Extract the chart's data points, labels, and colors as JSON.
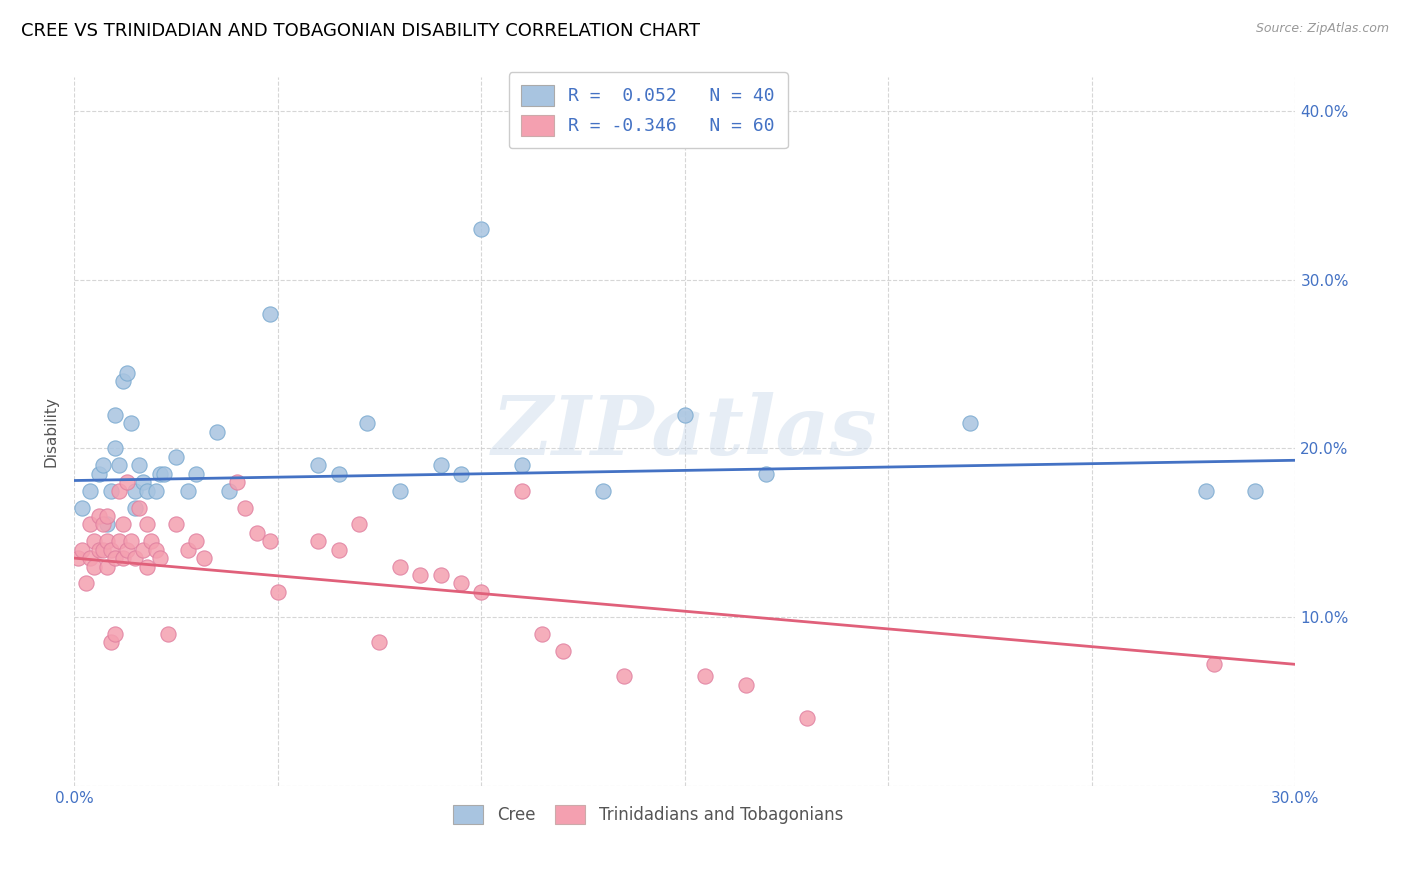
{
  "title": "CREE VS TRINIDADIAN AND TOBAGONIAN DISABILITY CORRELATION CHART",
  "source": "Source: ZipAtlas.com",
  "ylabel": "Disability",
  "xlim": [
    0.0,
    0.3
  ],
  "ylim": [
    0.0,
    0.42
  ],
  "watermark": "ZIPatlas",
  "legend_r1": "R =  0.052   N = 40",
  "legend_r2": "R = -0.346   N = 60",
  "cree_color": "#a8c4e0",
  "trini_color": "#f4a0b0",
  "cree_line_color": "#4472c4",
  "trini_line_color": "#e0607a",
  "legend_label1": "Cree",
  "legend_label2": "Trinidadians and Tobagonians",
  "cree_line": [
    [
      0.0,
      0.181
    ],
    [
      0.3,
      0.193
    ]
  ],
  "trini_line": [
    [
      0.0,
      0.135
    ],
    [
      0.3,
      0.072
    ]
  ],
  "cree_points": [
    [
      0.002,
      0.165
    ],
    [
      0.004,
      0.175
    ],
    [
      0.006,
      0.185
    ],
    [
      0.007,
      0.19
    ],
    [
      0.008,
      0.155
    ],
    [
      0.009,
      0.175
    ],
    [
      0.01,
      0.2
    ],
    [
      0.01,
      0.22
    ],
    [
      0.011,
      0.19
    ],
    [
      0.012,
      0.24
    ],
    [
      0.013,
      0.245
    ],
    [
      0.014,
      0.215
    ],
    [
      0.015,
      0.175
    ],
    [
      0.015,
      0.165
    ],
    [
      0.016,
      0.19
    ],
    [
      0.017,
      0.18
    ],
    [
      0.018,
      0.175
    ],
    [
      0.02,
      0.175
    ],
    [
      0.021,
      0.185
    ],
    [
      0.022,
      0.185
    ],
    [
      0.025,
      0.195
    ],
    [
      0.028,
      0.175
    ],
    [
      0.03,
      0.185
    ],
    [
      0.035,
      0.21
    ],
    [
      0.038,
      0.175
    ],
    [
      0.048,
      0.28
    ],
    [
      0.06,
      0.19
    ],
    [
      0.065,
      0.185
    ],
    [
      0.072,
      0.215
    ],
    [
      0.08,
      0.175
    ],
    [
      0.09,
      0.19
    ],
    [
      0.095,
      0.185
    ],
    [
      0.1,
      0.33
    ],
    [
      0.11,
      0.19
    ],
    [
      0.13,
      0.175
    ],
    [
      0.15,
      0.22
    ],
    [
      0.17,
      0.185
    ],
    [
      0.22,
      0.215
    ],
    [
      0.278,
      0.175
    ],
    [
      0.29,
      0.175
    ]
  ],
  "trini_points": [
    [
      0.001,
      0.135
    ],
    [
      0.002,
      0.14
    ],
    [
      0.003,
      0.12
    ],
    [
      0.004,
      0.135
    ],
    [
      0.004,
      0.155
    ],
    [
      0.005,
      0.13
    ],
    [
      0.005,
      0.145
    ],
    [
      0.006,
      0.14
    ],
    [
      0.006,
      0.16
    ],
    [
      0.007,
      0.14
    ],
    [
      0.007,
      0.155
    ],
    [
      0.008,
      0.13
    ],
    [
      0.008,
      0.145
    ],
    [
      0.008,
      0.16
    ],
    [
      0.009,
      0.14
    ],
    [
      0.009,
      0.085
    ],
    [
      0.01,
      0.135
    ],
    [
      0.01,
      0.09
    ],
    [
      0.011,
      0.175
    ],
    [
      0.011,
      0.145
    ],
    [
      0.012,
      0.135
    ],
    [
      0.012,
      0.155
    ],
    [
      0.013,
      0.18
    ],
    [
      0.013,
      0.14
    ],
    [
      0.014,
      0.145
    ],
    [
      0.015,
      0.135
    ],
    [
      0.016,
      0.165
    ],
    [
      0.017,
      0.14
    ],
    [
      0.018,
      0.155
    ],
    [
      0.018,
      0.13
    ],
    [
      0.019,
      0.145
    ],
    [
      0.02,
      0.14
    ],
    [
      0.021,
      0.135
    ],
    [
      0.023,
      0.09
    ],
    [
      0.025,
      0.155
    ],
    [
      0.028,
      0.14
    ],
    [
      0.03,
      0.145
    ],
    [
      0.032,
      0.135
    ],
    [
      0.04,
      0.18
    ],
    [
      0.042,
      0.165
    ],
    [
      0.045,
      0.15
    ],
    [
      0.048,
      0.145
    ],
    [
      0.05,
      0.115
    ],
    [
      0.06,
      0.145
    ],
    [
      0.065,
      0.14
    ],
    [
      0.07,
      0.155
    ],
    [
      0.075,
      0.085
    ],
    [
      0.08,
      0.13
    ],
    [
      0.085,
      0.125
    ],
    [
      0.09,
      0.125
    ],
    [
      0.095,
      0.12
    ],
    [
      0.1,
      0.115
    ],
    [
      0.11,
      0.175
    ],
    [
      0.115,
      0.09
    ],
    [
      0.12,
      0.08
    ],
    [
      0.135,
      0.065
    ],
    [
      0.155,
      0.065
    ],
    [
      0.165,
      0.06
    ],
    [
      0.18,
      0.04
    ],
    [
      0.28,
      0.072
    ]
  ]
}
